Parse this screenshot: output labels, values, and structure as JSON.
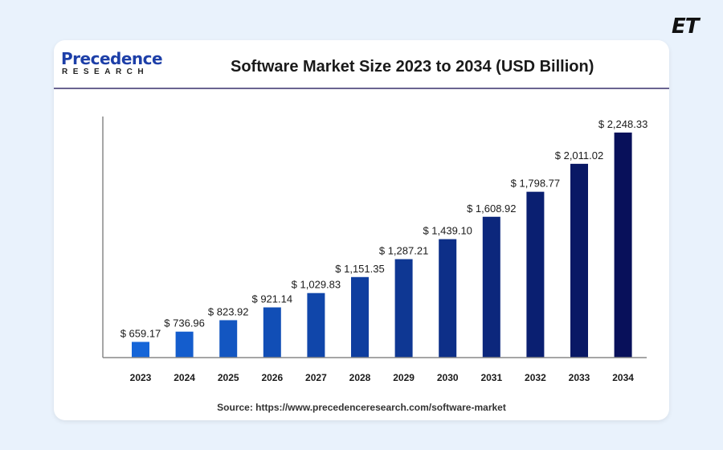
{
  "watermark": {
    "logo_text": "ET"
  },
  "brand": {
    "name_top": "Precedence",
    "name_bottom": "RESEARCH"
  },
  "source": "Source: https://www.precedenceresearch.com/software-market",
  "colors": {
    "bar_start": "#1565d8",
    "bar_end": "#08105a",
    "axis": "#777777",
    "background": "#e9f2fc"
  },
  "chart_data": {
    "type": "bar",
    "title": "Software Market Size 2023 to 2034 (USD Billion)",
    "xlabel": "",
    "ylabel": "",
    "categories": [
      "2023",
      "2024",
      "2025",
      "2026",
      "2027",
      "2028",
      "2029",
      "2030",
      "2031",
      "2032",
      "2033",
      "2034"
    ],
    "values": [
      659.17,
      736.96,
      823.92,
      921.14,
      1029.83,
      1151.35,
      1287.21,
      1439.1,
      1608.92,
      1798.77,
      2011.02,
      2248.33
    ],
    "data_labels": [
      "$ 659.17",
      "$ 736.96",
      "$ 823.92",
      "$ 921.14",
      "$ 1,029.83",
      "$ 1,151.35",
      "$ 1,287.21",
      "$ 1,439.10",
      "$ 1,608.92",
      "$ 1,798.77",
      "$ 2,011.02",
      "$ 2,248.33"
    ],
    "ylim": [
      540,
      2370
    ],
    "grid": false,
    "legend": "none"
  }
}
